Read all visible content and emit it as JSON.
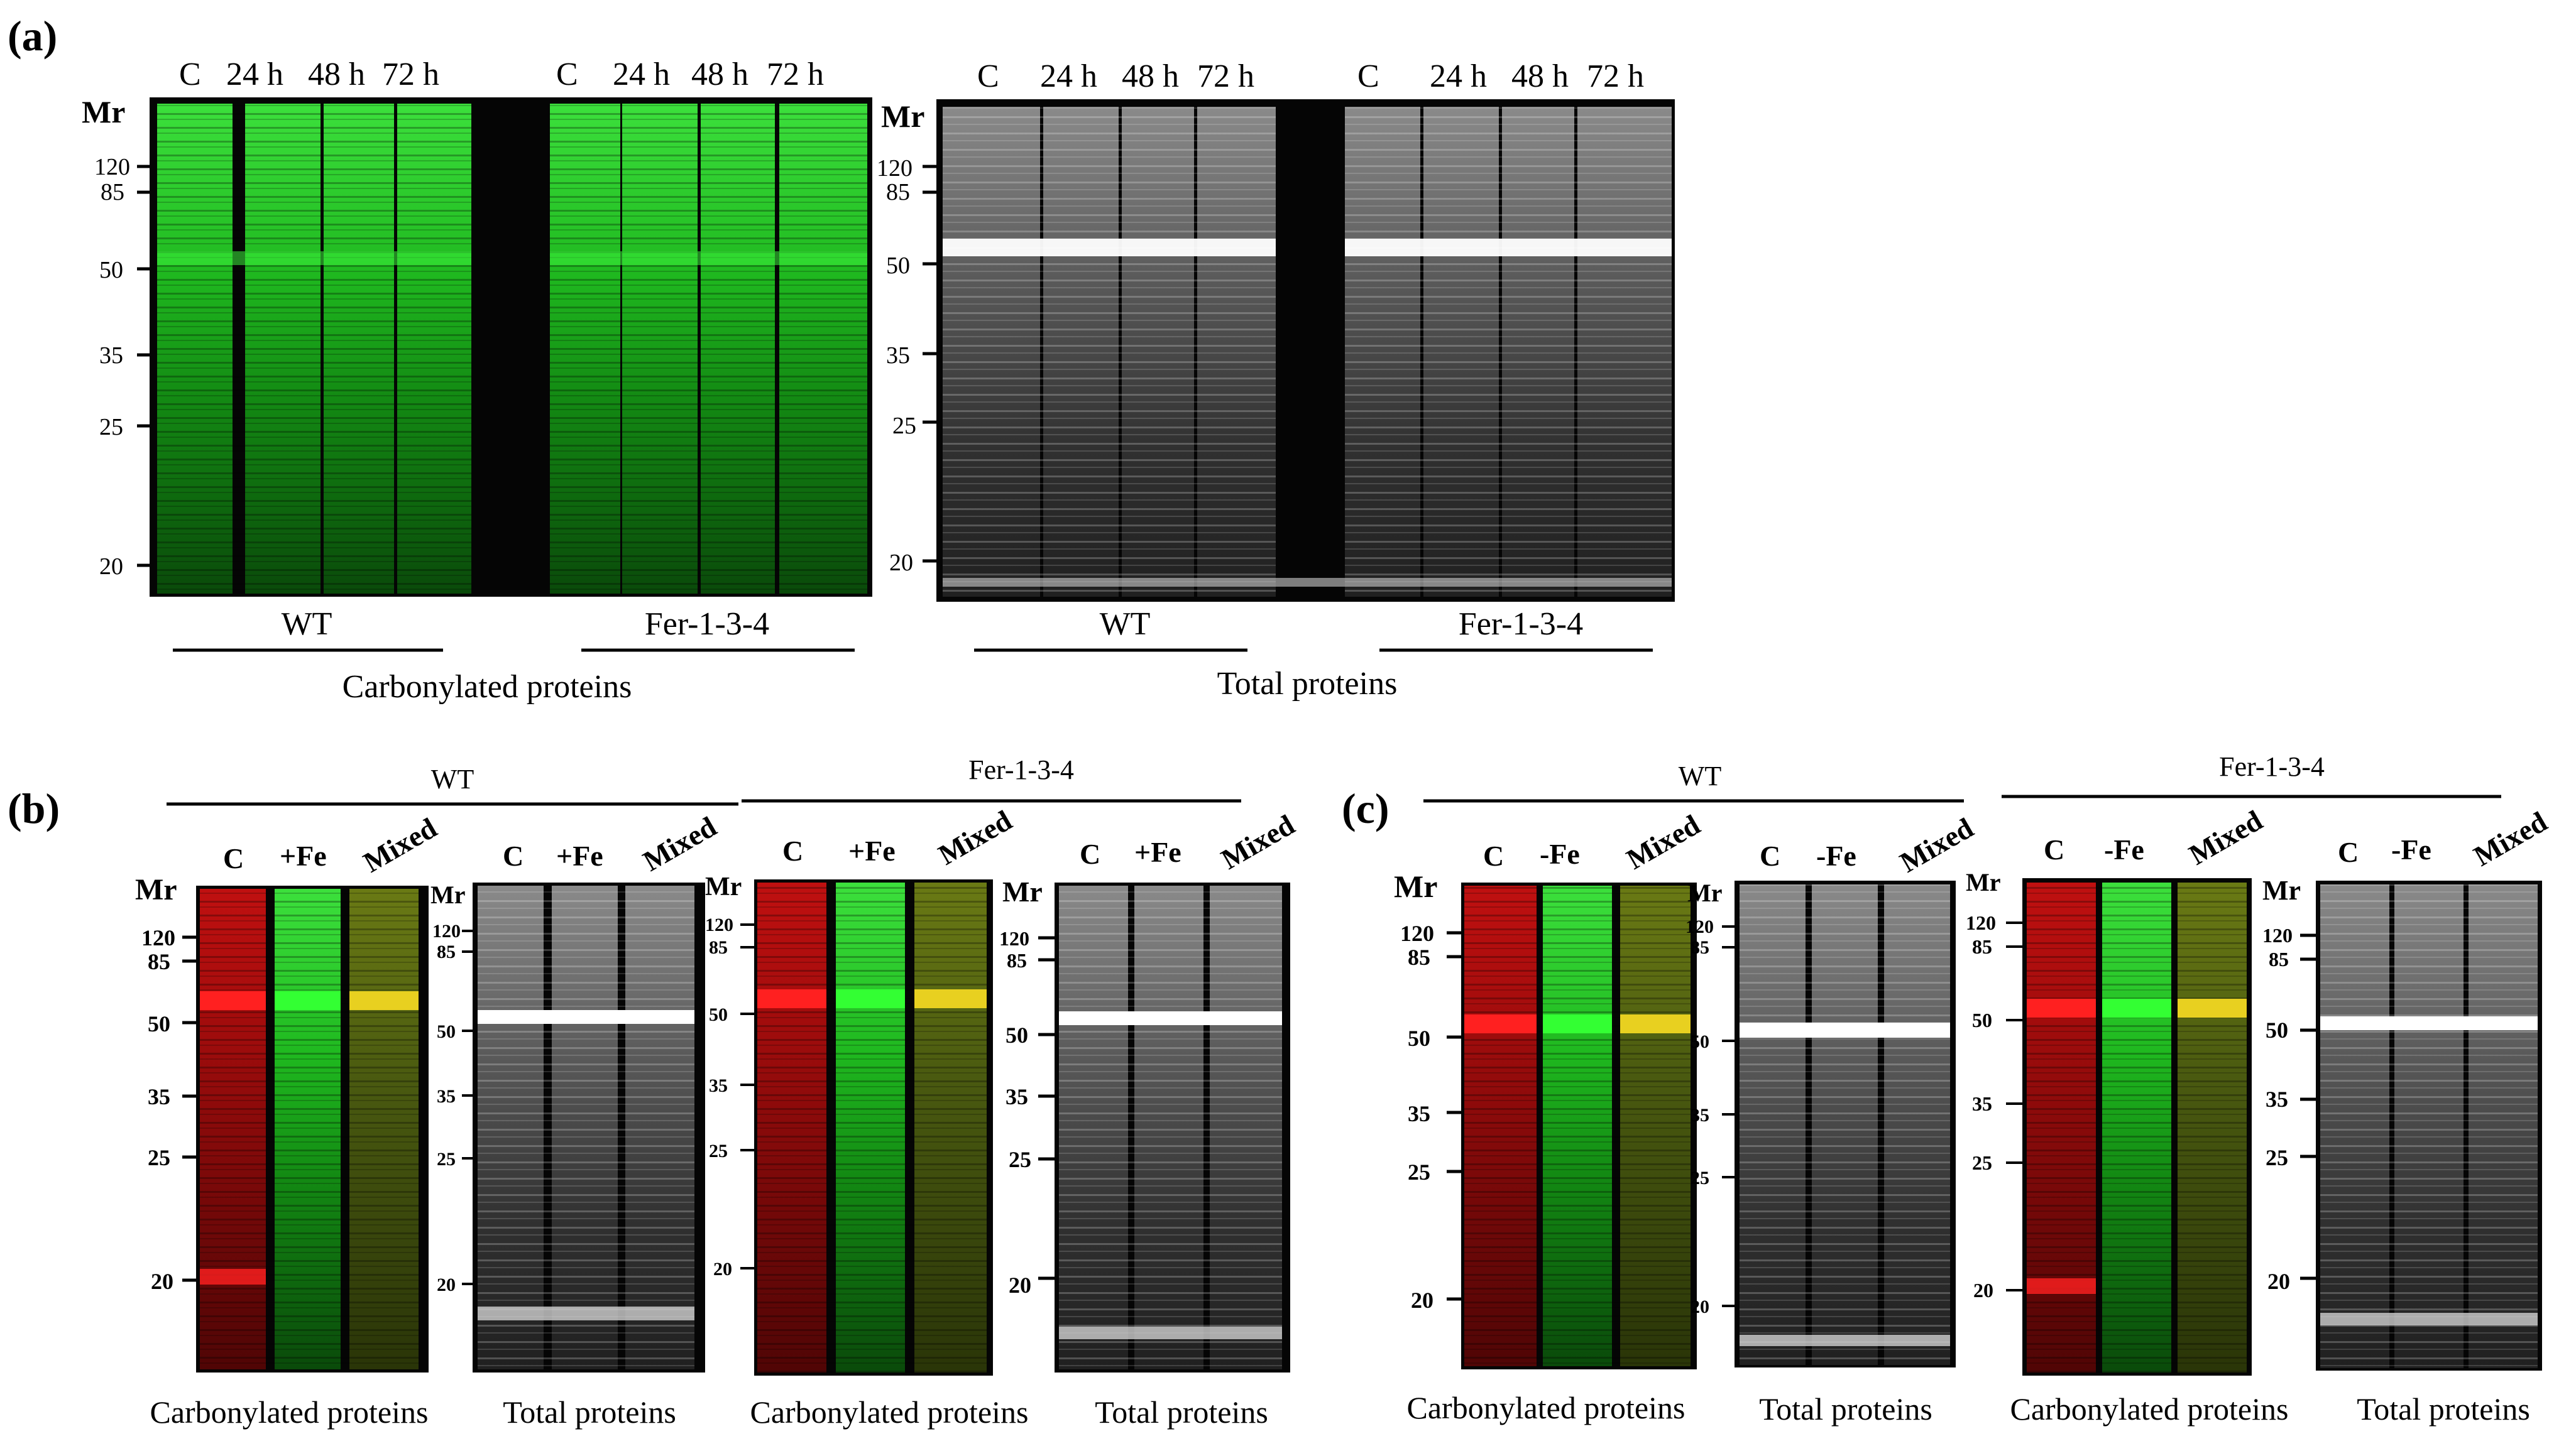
{
  "colors": {
    "green": "#22dd22",
    "red": "#ee2222",
    "yellow": "#e0c020",
    "white": "#ffffff",
    "gel_background": "#050505"
  },
  "panel_a": {
    "label": "(a)",
    "mr": "Mr",
    "lane_labels": [
      "C",
      "24 h",
      "48 h",
      "72 h"
    ],
    "markers_green": [
      "120",
      "85",
      "50",
      "35",
      "25",
      "20"
    ],
    "markers_gray": [
      "120",
      "85",
      "50",
      "35",
      "25",
      "20"
    ],
    "group_labels": [
      "WT",
      "Fer-1-3-4",
      "WT",
      "Fer-1-3-4"
    ],
    "section_labels": [
      "Carbonylated proteins",
      "Total proteins"
    ]
  },
  "panel_b": {
    "label": "(b)",
    "group_labels": [
      "WT",
      "Fer-1-3-4"
    ],
    "lane_labels": [
      "C",
      "+Fe",
      "Mixed"
    ],
    "mr": "Mr",
    "markers": [
      "120",
      "85",
      "50",
      "35",
      "25",
      "20"
    ],
    "section_labels": [
      "Carbonylated proteins",
      "Total proteins",
      "Carbonylated proteins",
      "Total proteins"
    ]
  },
  "panel_c": {
    "label": "(c)",
    "group_labels": [
      "WT",
      "Fer-1-3-4"
    ],
    "lane_labels": [
      "C",
      "-Fe",
      "Mixed"
    ],
    "mr": "Mr",
    "markers": [
      "120",
      "85",
      "50",
      "35",
      "25",
      "20"
    ],
    "section_labels": [
      "Carbonylated proteins",
      "Total proteins",
      "Carbonylated proteins",
      "Total proteins"
    ]
  }
}
